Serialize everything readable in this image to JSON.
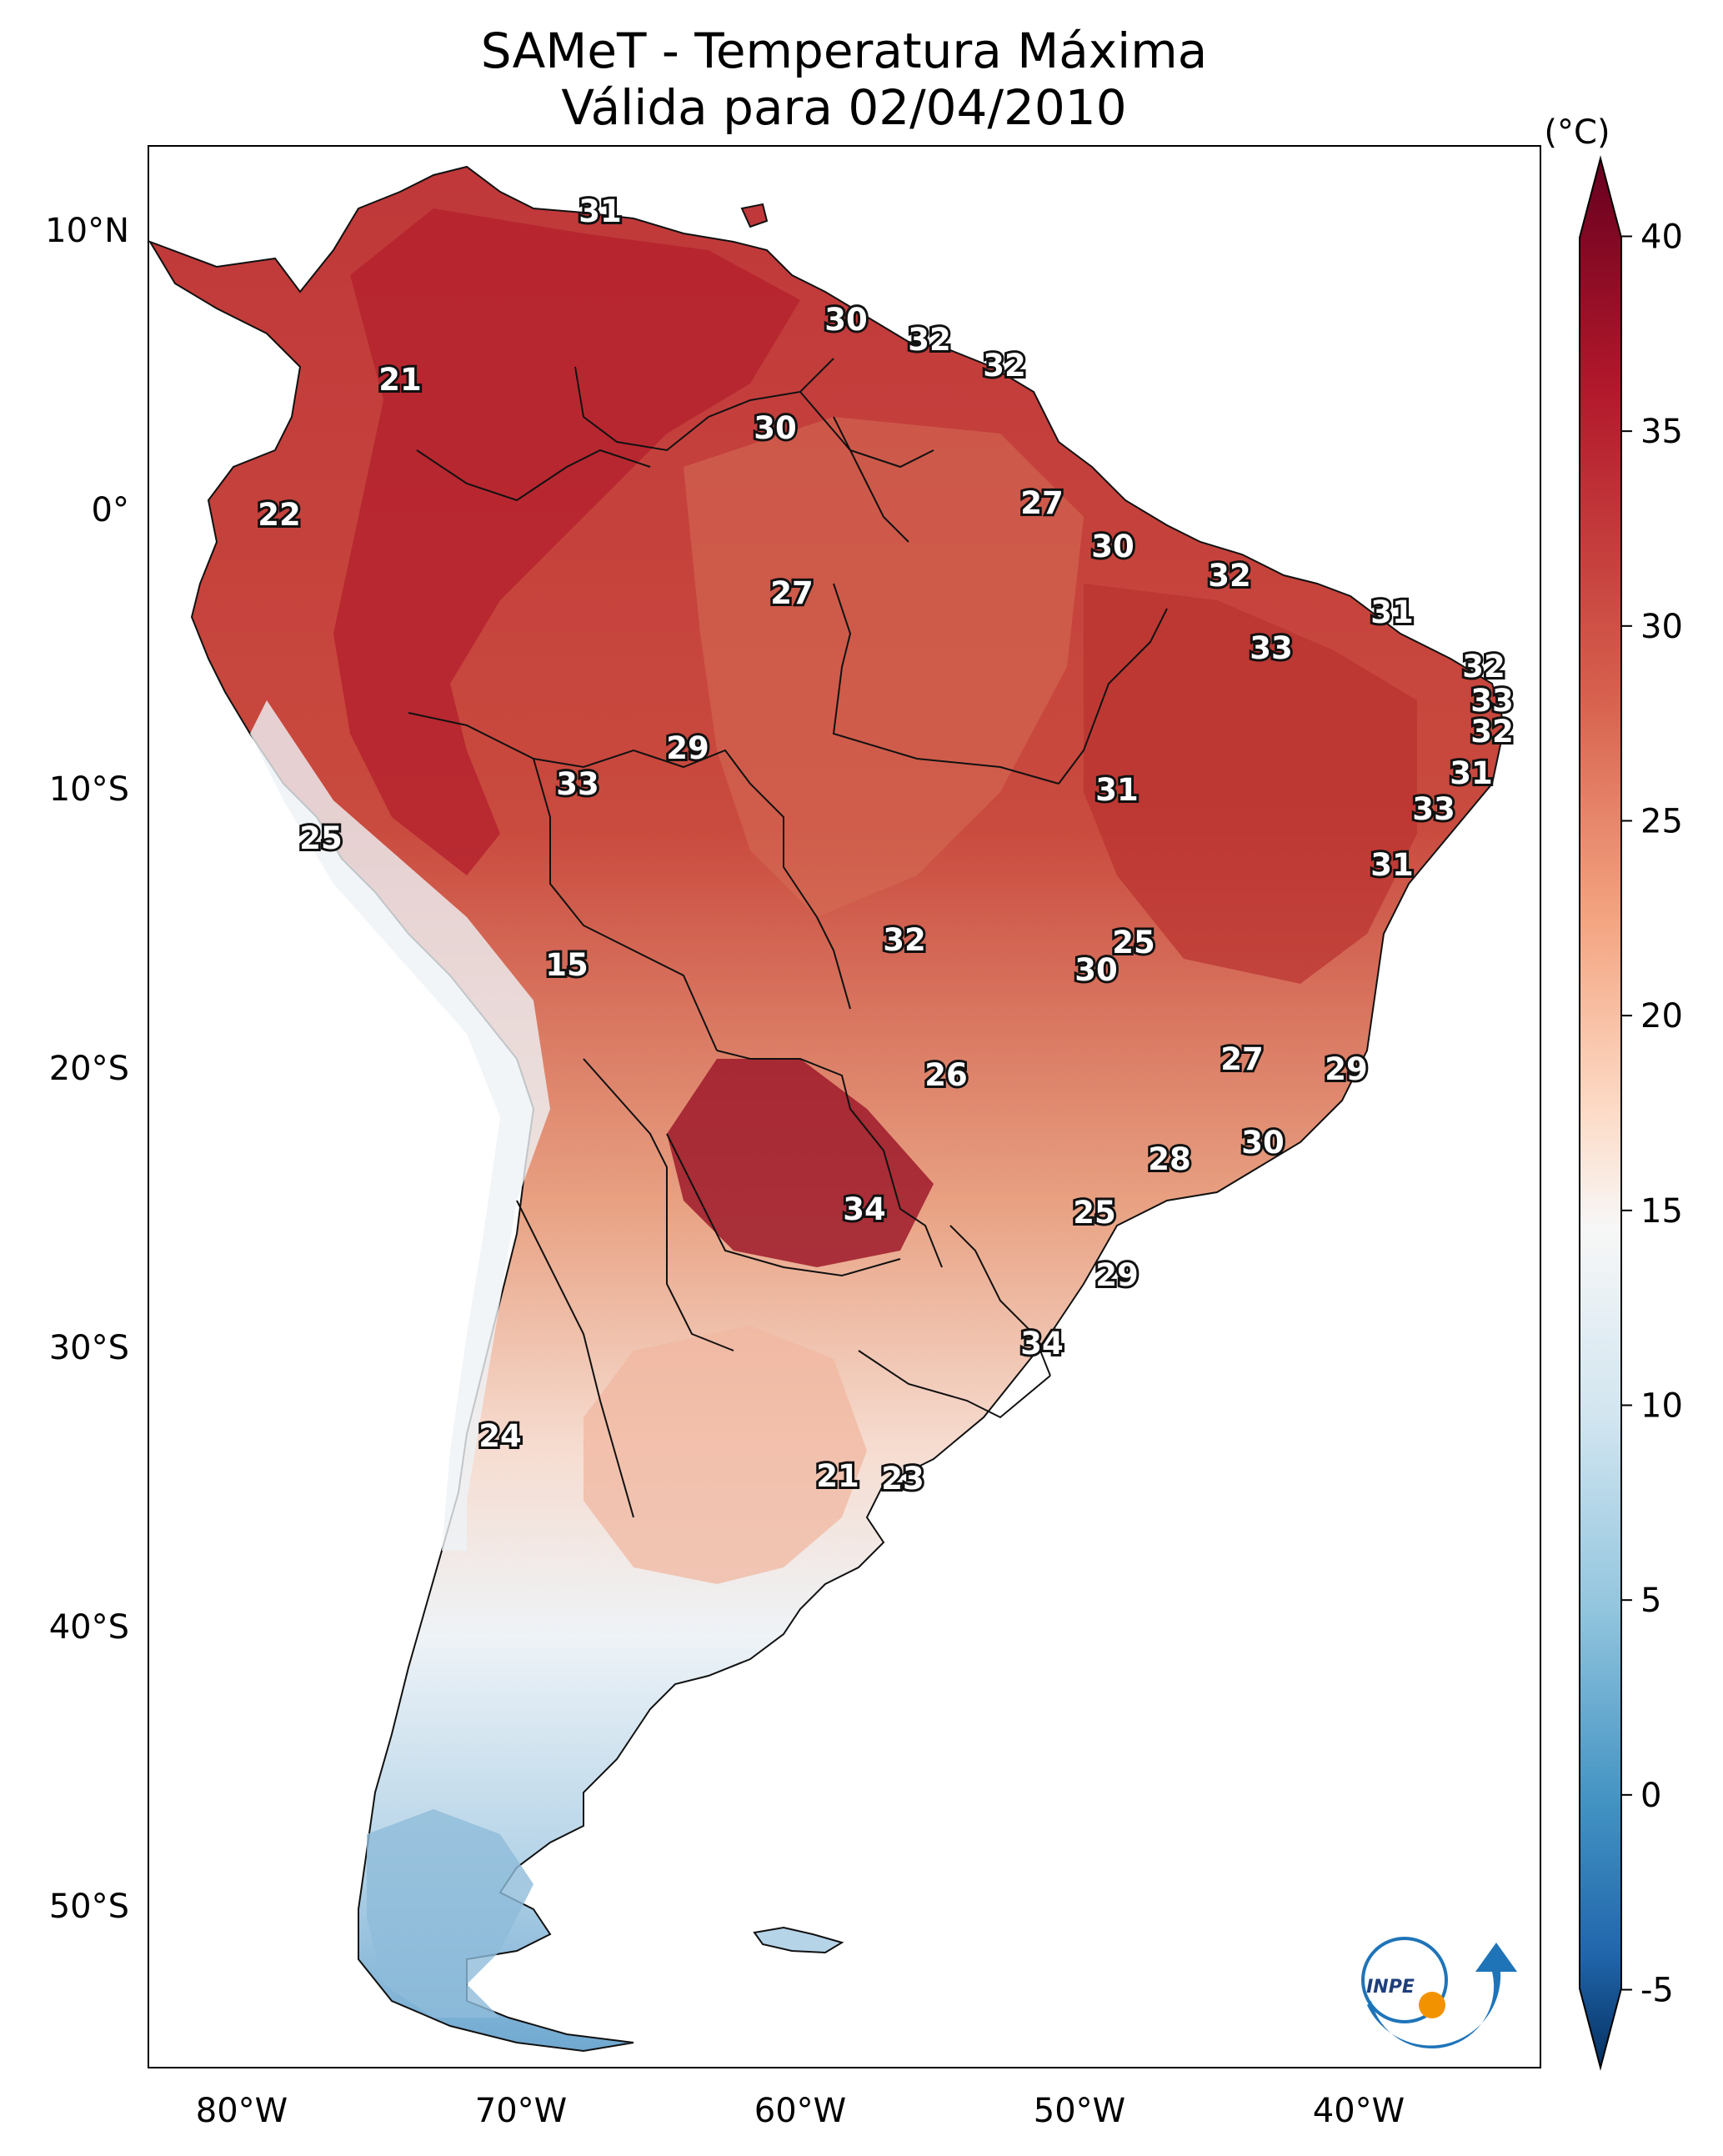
{
  "title": {
    "line1": "SAMeT - Temperatura Máxima",
    "line2": "Válida para 02/04/2010"
  },
  "axes": {
    "lat_ticks": [
      "10°N",
      "0°",
      "10°S",
      "20°S",
      "30°S",
      "40°S",
      "50°S"
    ],
    "lon_ticks": [
      "80°W",
      "70°W",
      "60°W",
      "50°W",
      "40°W"
    ]
  },
  "colorbar": {
    "unit": "(°C)",
    "ticks": [
      "40",
      "35",
      "30",
      "25",
      "20",
      "15",
      "10",
      "5",
      "0",
      "-5"
    ],
    "min": -7,
    "max": 42,
    "colors": {
      "top": "#67001f",
      "warm": "#d6604d",
      "mid": "#f7f7f7",
      "cool": "#4393c3",
      "bottom": "#053061"
    }
  },
  "contour_labels": [
    "31",
    "21",
    "30",
    "32",
    "32",
    "30",
    "22",
    "27",
    "30",
    "27",
    "32",
    "31",
    "33",
    "32",
    "33",
    "32",
    "29",
    "33",
    "31",
    "31",
    "25",
    "33",
    "31",
    "15",
    "32",
    "25",
    "30",
    "26",
    "27",
    "29",
    "30",
    "28",
    "34",
    "25",
    "29",
    "34",
    "24",
    "21",
    "23"
  ],
  "logo": {
    "text": "INPE"
  }
}
